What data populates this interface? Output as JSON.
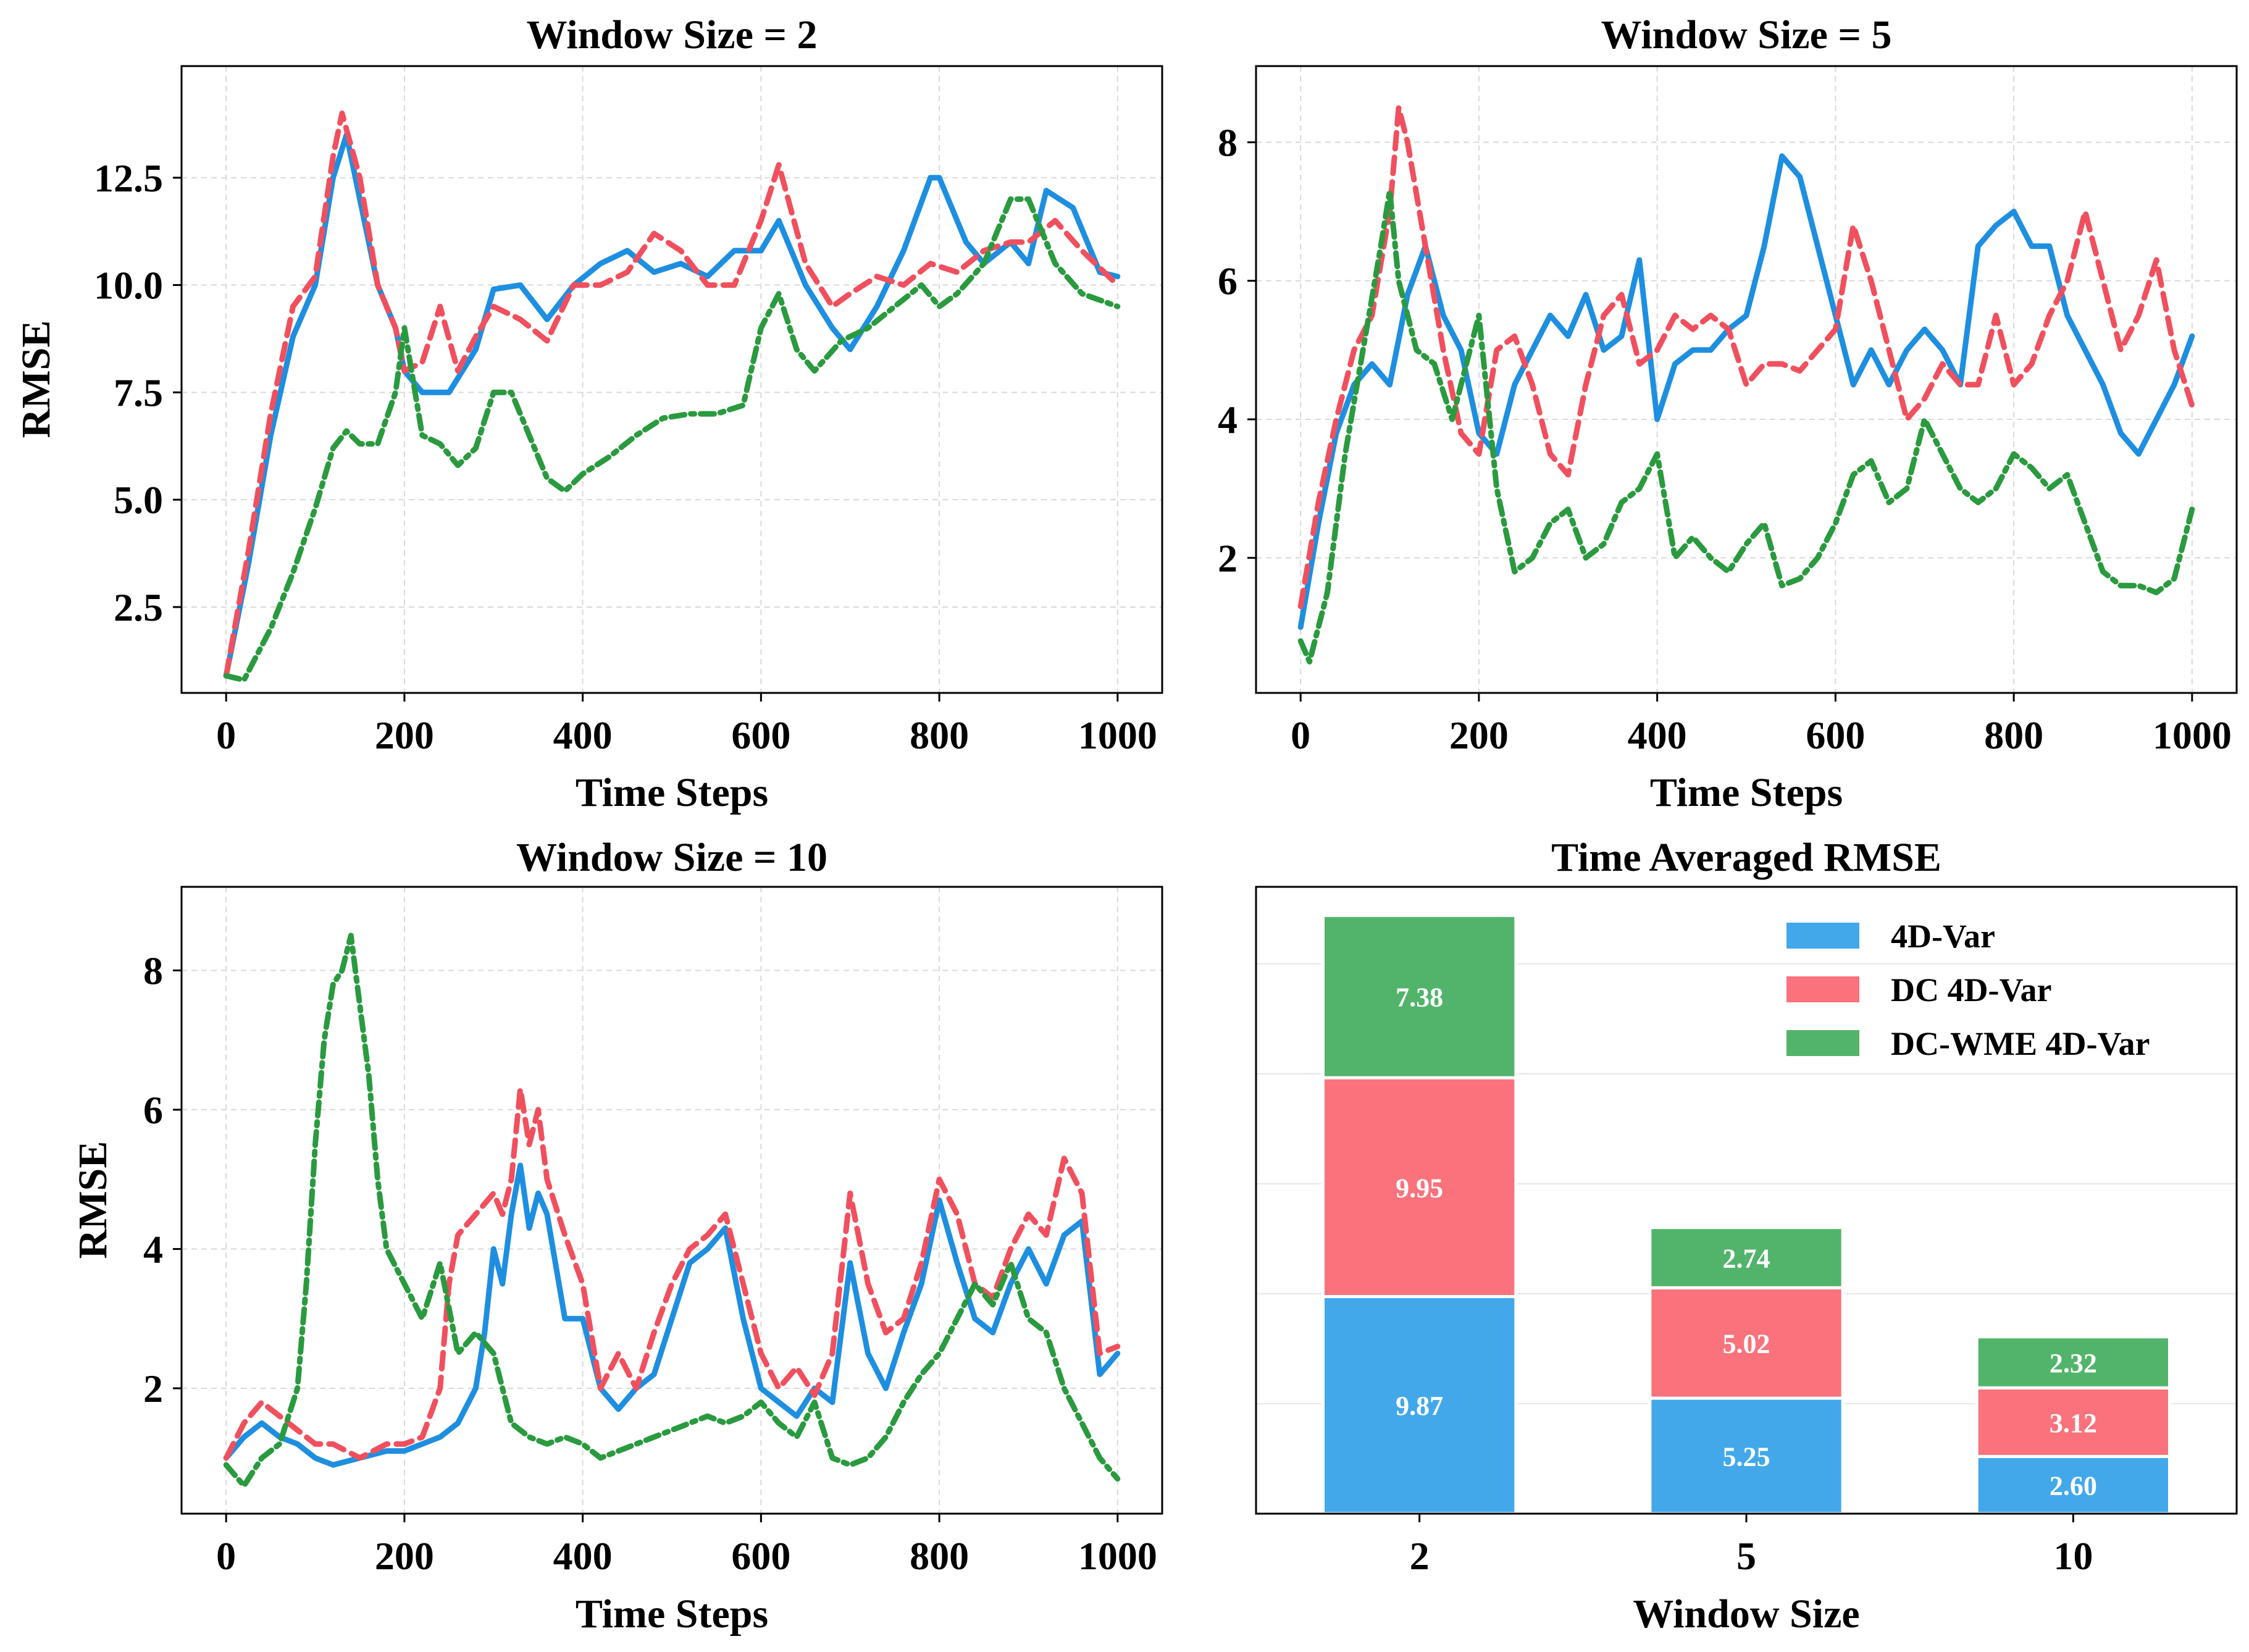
{
  "chart_data": [
    {
      "type": "line",
      "title": "Window Size = 2",
      "xlabel": "Time Steps",
      "ylabel": "RMSE",
      "xlim": [
        -50,
        1050
      ],
      "ylim": [
        0.5,
        15.1
      ],
      "xticks": [
        0,
        200,
        400,
        600,
        800,
        1000
      ],
      "xtick_labels": [
        "0",
        "200",
        "400",
        "600",
        "800",
        "1000"
      ],
      "yticks": [
        2.5,
        5.0,
        7.5,
        10.0,
        12.5
      ],
      "ytick_labels": [
        "2.5",
        "5.0",
        "7.5",
        "10.0",
        "12.5"
      ],
      "series": [
        {
          "name": "4D-Var",
          "x": [
            0,
            25,
            50,
            75,
            100,
            120,
            135,
            150,
            170,
            190,
            200,
            220,
            250,
            280,
            300,
            330,
            360,
            390,
            420,
            450,
            480,
            510,
            540,
            570,
            600,
            620,
            650,
            680,
            700,
            730,
            760,
            790,
            800,
            830,
            850,
            880,
            900,
            920,
            950,
            980,
            1000
          ],
          "y": [
            0.9,
            3.5,
            6.5,
            8.8,
            10.0,
            12.5,
            13.5,
            12.0,
            10.0,
            9.0,
            8.0,
            7.5,
            7.5,
            8.5,
            9.9,
            10.0,
            9.2,
            10.0,
            10.5,
            10.8,
            10.3,
            10.5,
            10.2,
            10.8,
            10.8,
            11.5,
            10.0,
            9.0,
            8.5,
            9.5,
            10.8,
            12.5,
            12.5,
            11.0,
            10.5,
            11.0,
            10.5,
            12.2,
            11.8,
            10.3,
            10.2
          ]
        },
        {
          "name": "DC 4D-Var",
          "x": [
            0,
            25,
            50,
            75,
            100,
            120,
            130,
            150,
            170,
            190,
            200,
            220,
            240,
            260,
            280,
            300,
            330,
            360,
            390,
            420,
            450,
            480,
            510,
            540,
            570,
            600,
            620,
            650,
            680,
            700,
            730,
            760,
            790,
            820,
            850,
            880,
            900,
            930,
            960,
            1000
          ],
          "y": [
            0.9,
            3.8,
            7.0,
            9.5,
            10.2,
            13.0,
            14.0,
            12.5,
            10.0,
            9.0,
            8.0,
            8.2,
            9.5,
            8.0,
            8.8,
            9.5,
            9.2,
            8.7,
            10.0,
            10.0,
            10.3,
            11.2,
            10.8,
            10.0,
            10.0,
            11.5,
            12.8,
            10.5,
            9.5,
            9.8,
            10.2,
            10.0,
            10.5,
            10.3,
            10.8,
            11.0,
            11.0,
            11.5,
            10.8,
            10.0
          ]
        },
        {
          "name": "DC-WME 4D-Var",
          "x": [
            0,
            20,
            50,
            75,
            100,
            120,
            135,
            150,
            170,
            190,
            200,
            220,
            240,
            260,
            280,
            300,
            320,
            340,
            360,
            380,
            400,
            430,
            460,
            490,
            520,
            550,
            580,
            600,
            620,
            640,
            660,
            690,
            720,
            750,
            780,
            800,
            820,
            850,
            880,
            900,
            930,
            960,
            1000
          ],
          "y": [
            0.9,
            0.8,
            2.0,
            3.3,
            4.8,
            6.2,
            6.6,
            6.3,
            6.3,
            7.5,
            9.0,
            6.5,
            6.3,
            5.8,
            6.2,
            7.5,
            7.5,
            6.5,
            5.5,
            5.2,
            5.6,
            6.0,
            6.5,
            6.9,
            7.0,
            7.0,
            7.2,
            9.0,
            9.8,
            8.5,
            8.0,
            8.7,
            9.0,
            9.5,
            10.0,
            9.5,
            9.8,
            10.5,
            12.0,
            12.0,
            10.5,
            9.8,
            9.5
          ]
        }
      ]
    },
    {
      "type": "line",
      "title": "Window Size = 5",
      "xlabel": "Time Steps",
      "ylabel": "",
      "xlim": [
        -50,
        1050
      ],
      "ylim": [
        0.05,
        9.1
      ],
      "xticks": [
        0,
        200,
        400,
        600,
        800,
        1000
      ],
      "xtick_labels": [
        "0",
        "200",
        "400",
        "600",
        "800",
        "1000"
      ],
      "yticks": [
        2,
        4,
        6,
        8
      ],
      "ytick_labels": [
        "2",
        "4",
        "6",
        "8"
      ],
      "series": [
        {
          "name": "4D-Var",
          "x": [
            0,
            20,
            40,
            60,
            80,
            100,
            120,
            140,
            160,
            180,
            200,
            220,
            240,
            260,
            280,
            300,
            320,
            340,
            360,
            380,
            400,
            420,
            440,
            460,
            480,
            500,
            520,
            540,
            560,
            580,
            600,
            620,
            640,
            660,
            680,
            700,
            720,
            740,
            760,
            780,
            800,
            820,
            840,
            860,
            880,
            900,
            920,
            940,
            960,
            980,
            1000
          ],
          "y": [
            1.0,
            2.5,
            3.8,
            4.5,
            4.8,
            4.5,
            5.8,
            6.5,
            5.5,
            5.0,
            3.8,
            3.5,
            4.5,
            5.0,
            5.5,
            5.2,
            5.8,
            5.0,
            5.2,
            6.3,
            4.0,
            4.8,
            5.0,
            5.0,
            5.3,
            5.5,
            6.5,
            7.8,
            7.5,
            6.5,
            5.5,
            4.5,
            5.0,
            4.5,
            5.0,
            5.3,
            5.0,
            4.5,
            6.5,
            6.8,
            7.0,
            6.5,
            6.5,
            5.5,
            5.0,
            4.5,
            3.8,
            3.5,
            4.0,
            4.5,
            5.2
          ]
        },
        {
          "name": "DC 4D-Var",
          "x": [
            0,
            20,
            40,
            60,
            80,
            100,
            110,
            120,
            140,
            160,
            180,
            200,
            220,
            240,
            260,
            280,
            300,
            320,
            340,
            360,
            380,
            400,
            420,
            440,
            460,
            480,
            500,
            520,
            540,
            560,
            580,
            600,
            620,
            640,
            660,
            680,
            700,
            720,
            740,
            760,
            780,
            800,
            820,
            840,
            860,
            880,
            900,
            920,
            940,
            960,
            980,
            1000
          ],
          "y": [
            1.3,
            2.8,
            4.0,
            5.0,
            5.5,
            7.0,
            8.5,
            8.0,
            6.5,
            5.0,
            3.8,
            3.5,
            5.0,
            5.2,
            4.5,
            3.5,
            3.2,
            4.5,
            5.5,
            5.8,
            4.8,
            5.0,
            5.5,
            5.3,
            5.5,
            5.3,
            4.5,
            4.8,
            4.8,
            4.7,
            5.0,
            5.3,
            6.8,
            6.0,
            5.0,
            4.0,
            4.3,
            4.8,
            4.5,
            4.5,
            5.5,
            4.5,
            4.8,
            5.5,
            6.0,
            7.0,
            6.0,
            5.0,
            5.5,
            6.3,
            5.0,
            4.2
          ]
        },
        {
          "name": "DC-WME 4D-Var",
          "x": [
            0,
            10,
            30,
            50,
            70,
            90,
            100,
            110,
            130,
            150,
            170,
            190,
            200,
            220,
            240,
            260,
            280,
            300,
            320,
            340,
            360,
            380,
            400,
            420,
            440,
            460,
            480,
            500,
            520,
            540,
            560,
            580,
            600,
            620,
            640,
            660,
            680,
            700,
            720,
            740,
            760,
            780,
            800,
            820,
            840,
            860,
            880,
            900,
            920,
            940,
            960,
            980,
            1000
          ],
          "y": [
            0.8,
            0.5,
            1.5,
            3.5,
            5.0,
            6.5,
            7.3,
            6.0,
            5.0,
            4.8,
            4.0,
            5.0,
            5.5,
            3.0,
            1.8,
            2.0,
            2.5,
            2.7,
            2.0,
            2.2,
            2.8,
            3.0,
            3.5,
            2.0,
            2.3,
            2.0,
            1.8,
            2.2,
            2.5,
            1.6,
            1.7,
            2.0,
            2.5,
            3.2,
            3.4,
            2.8,
            3.0,
            4.0,
            3.5,
            3.0,
            2.8,
            3.0,
            3.5,
            3.3,
            3.0,
            3.2,
            2.5,
            1.8,
            1.6,
            1.6,
            1.5,
            1.7,
            2.7
          ]
        }
      ]
    },
    {
      "type": "line",
      "title": "Window Size = 10",
      "xlabel": "Time Steps",
      "ylabel": "RMSE",
      "xlim": [
        -50,
        1050
      ],
      "ylim": [
        0.2,
        9.2
      ],
      "xticks": [
        0,
        200,
        400,
        600,
        800,
        1000
      ],
      "xtick_labels": [
        "0",
        "200",
        "400",
        "600",
        "800",
        "1000"
      ],
      "yticks": [
        2,
        4,
        6,
        8
      ],
      "ytick_labels": [
        "2",
        "4",
        "6",
        "8"
      ],
      "series": [
        {
          "name": "4D-Var",
          "x": [
            0,
            20,
            40,
            60,
            80,
            100,
            120,
            150,
            180,
            200,
            220,
            240,
            260,
            280,
            290,
            300,
            310,
            320,
            330,
            340,
            350,
            360,
            380,
            400,
            420,
            440,
            460,
            480,
            500,
            520,
            540,
            560,
            580,
            600,
            620,
            640,
            660,
            680,
            700,
            720,
            740,
            760,
            780,
            800,
            820,
            840,
            860,
            880,
            900,
            920,
            940,
            960,
            980,
            1000
          ],
          "y": [
            1.0,
            1.3,
            1.5,
            1.3,
            1.2,
            1.0,
            0.9,
            1.0,
            1.1,
            1.1,
            1.2,
            1.3,
            1.5,
            2.0,
            2.8,
            4.0,
            3.5,
            4.5,
            5.2,
            4.3,
            4.8,
            4.5,
            3.0,
            3.0,
            2.0,
            1.7,
            2.0,
            2.2,
            3.0,
            3.8,
            4.0,
            4.3,
            3.0,
            2.0,
            1.8,
            1.6,
            2.0,
            1.8,
            3.8,
            2.5,
            2.0,
            2.8,
            3.5,
            4.7,
            3.8,
            3.0,
            2.8,
            3.5,
            4.0,
            3.5,
            4.2,
            4.4,
            2.2,
            2.5
          ]
        },
        {
          "name": "DC 4D-Var",
          "x": [
            0,
            20,
            40,
            60,
            80,
            100,
            120,
            150,
            180,
            200,
            220,
            240,
            250,
            260,
            280,
            300,
            310,
            320,
            330,
            340,
            350,
            360,
            380,
            400,
            420,
            440,
            460,
            480,
            500,
            520,
            540,
            560,
            580,
            600,
            620,
            640,
            660,
            680,
            700,
            720,
            740,
            760,
            780,
            800,
            820,
            840,
            860,
            880,
            900,
            920,
            940,
            960,
            980,
            1000
          ],
          "y": [
            1.0,
            1.5,
            1.8,
            1.6,
            1.4,
            1.2,
            1.2,
            1.0,
            1.2,
            1.2,
            1.3,
            2.0,
            3.5,
            4.2,
            4.5,
            4.8,
            4.5,
            5.0,
            6.3,
            5.5,
            6.0,
            5.0,
            4.2,
            3.5,
            2.0,
            2.5,
            2.0,
            2.8,
            3.5,
            4.0,
            4.2,
            4.5,
            3.5,
            2.5,
            2.0,
            2.3,
            1.9,
            2.5,
            4.8,
            3.5,
            2.8,
            3.0,
            3.8,
            5.0,
            4.5,
            3.5,
            3.3,
            4.0,
            4.5,
            4.2,
            5.3,
            4.8,
            2.5,
            2.6
          ]
        },
        {
          "name": "DC-WME 4D-Var",
          "x": [
            0,
            20,
            40,
            60,
            80,
            90,
            100,
            110,
            120,
            130,
            140,
            150,
            160,
            170,
            180,
            200,
            220,
            240,
            260,
            280,
            300,
            320,
            340,
            360,
            380,
            400,
            420,
            440,
            460,
            480,
            500,
            520,
            540,
            560,
            580,
            600,
            620,
            640,
            660,
            680,
            700,
            720,
            740,
            760,
            780,
            800,
            820,
            840,
            860,
            880,
            900,
            920,
            940,
            960,
            980,
            1000
          ],
          "y": [
            0.9,
            0.6,
            1.0,
            1.2,
            2.0,
            3.5,
            5.5,
            7.0,
            7.8,
            8.0,
            8.5,
            7.5,
            6.5,
            5.0,
            4.0,
            3.5,
            3.0,
            3.8,
            2.5,
            2.8,
            2.5,
            1.5,
            1.3,
            1.2,
            1.3,
            1.2,
            1.0,
            1.1,
            1.2,
            1.3,
            1.4,
            1.5,
            1.6,
            1.5,
            1.6,
            1.8,
            1.5,
            1.3,
            1.8,
            1.0,
            0.9,
            1.0,
            1.3,
            1.8,
            2.2,
            2.5,
            3.0,
            3.5,
            3.2,
            3.8,
            3.0,
            2.8,
            2.0,
            1.5,
            1.0,
            0.7
          ]
        }
      ]
    },
    {
      "type": "bar",
      "stacked": true,
      "title": "Time Averaged RMSE",
      "xlabel": "Window Size",
      "ylabel": "",
      "categories": [
        "2",
        "5",
        "10"
      ],
      "ylim": [
        0,
        28.5
      ],
      "series": [
        {
          "name": "4D-Var",
          "values": [
            9.87,
            5.25,
            2.6
          ],
          "labels": [
            "9.87",
            "5.25",
            "2.60"
          ]
        },
        {
          "name": "DC 4D-Var",
          "values": [
            9.95,
            5.02,
            3.12
          ],
          "labels": [
            "9.95",
            "5.02",
            "3.12"
          ]
        },
        {
          "name": "DC-WME 4D-Var",
          "values": [
            7.38,
            2.74,
            2.32
          ],
          "labels": [
            "7.38",
            "2.74",
            "2.32"
          ]
        }
      ],
      "legend": {
        "placement": "top-right",
        "entries": [
          "4D-Var",
          "DC 4D-Var",
          "DC-WME 4D-Var"
        ]
      }
    }
  ],
  "colors": {
    "4D-Var": "#1e8fe0",
    "DC 4D-Var": "#f0505e",
    "DC-WME 4D-Var": "#2a9a3f",
    "bar_4D-Var": "#42a8ea",
    "bar_DC 4D-Var": "#f9727c",
    "bar_DC-WME 4D-Var": "#52b46a"
  }
}
